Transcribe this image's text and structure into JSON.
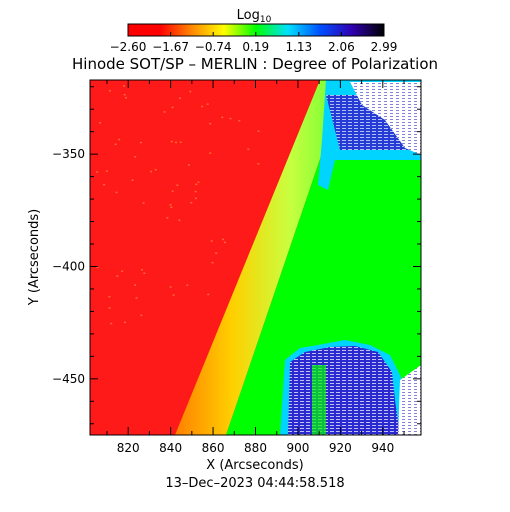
{
  "chart_data": {
    "type": "heatmap",
    "title": "Hinode SOT/SP – MERLIN : Degree of Polarization",
    "xlabel": "X (Arcseconds)",
    "ylabel": "Y (Arcseconds)",
    "xlim": [
      802,
      958
    ],
    "ylim": [
      -475,
      -317
    ],
    "x_ticks": [
      820,
      840,
      860,
      880,
      900,
      920,
      940
    ],
    "x_tick_labels": [
      "820",
      "840",
      "860",
      "880",
      "900",
      "920",
      "940"
    ],
    "y_ticks": [
      -350,
      -400,
      -450
    ],
    "y_tick_labels": [
      "−350",
      "−400",
      "−450"
    ],
    "footer": "13–Dec–2023 04:44:58.518",
    "colorbar": {
      "label_base": "Log",
      "label_sub": "10",
      "range": [
        -2.6,
        2.99
      ],
      "ticks": [
        -2.6,
        -1.67,
        -0.74,
        0.19,
        1.13,
        2.06,
        2.99
      ],
      "tick_labels": [
        "−2.60",
        "−1.67",
        "−0.74",
        "0.19",
        "1.13",
        "2.06",
        "2.99"
      ],
      "colors": [
        "#ff0000",
        "#ff0000",
        "#ff8800",
        "#ffff00",
        "#00ff00",
        "#00e0ff",
        "#0050ff",
        "#3000b0",
        "#000000"
      ]
    },
    "regions": [
      {
        "name": "red",
        "color": "#ff1a1a"
      },
      {
        "name": "limb-gradient",
        "colors": [
          "#ff8000",
          "#ffd000",
          "#c8ff40",
          "#60ff30"
        ]
      },
      {
        "name": "green",
        "color": "#00ff00"
      },
      {
        "name": "cyan",
        "color": "#00d4ff"
      },
      {
        "name": "blue",
        "color": "#2a2ad0"
      },
      {
        "name": "white",
        "color": "#ffffff"
      }
    ]
  }
}
